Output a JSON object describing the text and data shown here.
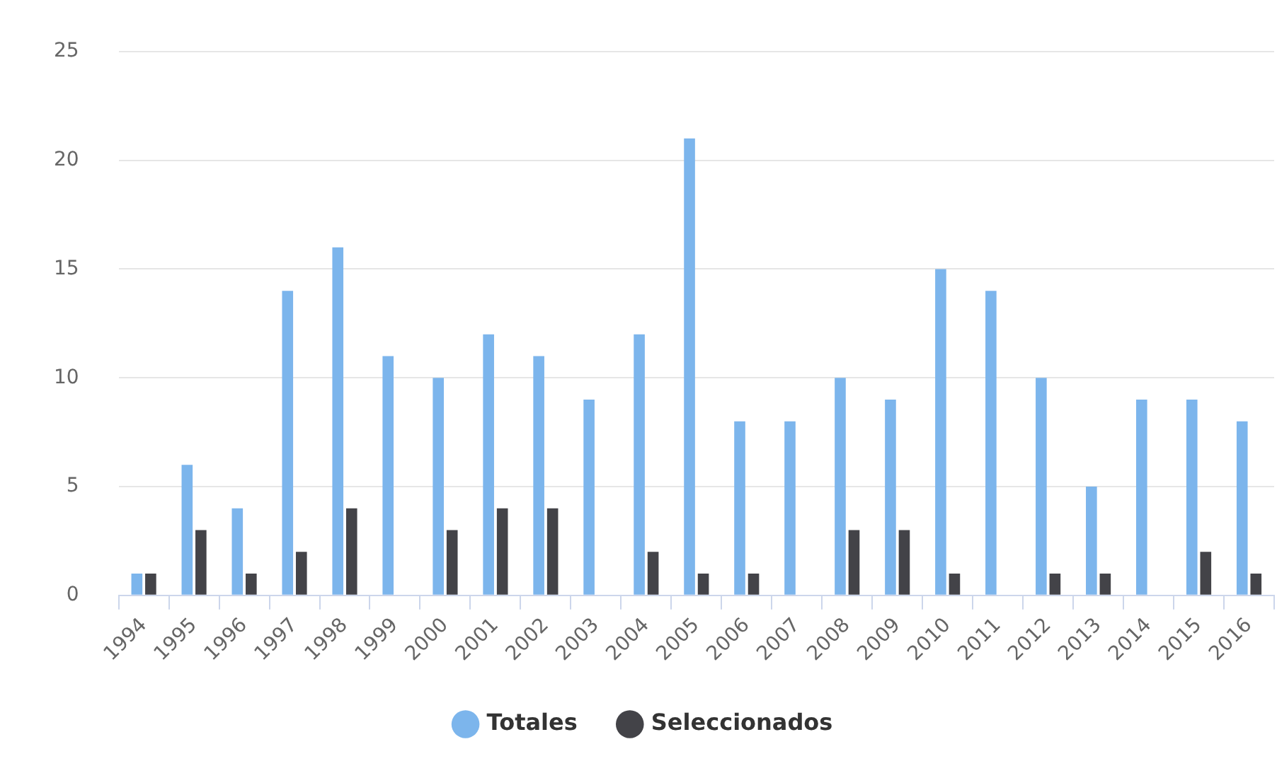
{
  "chart_data": {
    "type": "bar",
    "categories": [
      "1994",
      "1995",
      "1996",
      "1997",
      "1998",
      "1999",
      "2000",
      "2001",
      "2002",
      "2003",
      "2004",
      "2005",
      "2006",
      "2007",
      "2008",
      "2009",
      "2010",
      "2011",
      "2012",
      "2013",
      "2014",
      "2015",
      "2016"
    ],
    "series": [
      {
        "name": "Totales",
        "color": "#7cb5ec",
        "values": [
          1,
          6,
          4,
          14,
          16,
          11,
          10,
          12,
          11,
          9,
          12,
          21,
          8,
          8,
          10,
          9,
          15,
          14,
          10,
          5,
          9,
          9,
          8
        ]
      },
      {
        "name": "Seleccionados",
        "color": "#434348",
        "values": [
          1,
          3,
          1,
          2,
          4,
          0,
          3,
          4,
          4,
          0,
          2,
          1,
          1,
          0,
          3,
          3,
          1,
          0,
          1,
          1,
          0,
          2,
          1
        ]
      }
    ],
    "ylim": [
      0,
      25
    ],
    "yticks": [
      0,
      5,
      10,
      15,
      20,
      25
    ],
    "grid": "y",
    "legend": "bottom"
  }
}
